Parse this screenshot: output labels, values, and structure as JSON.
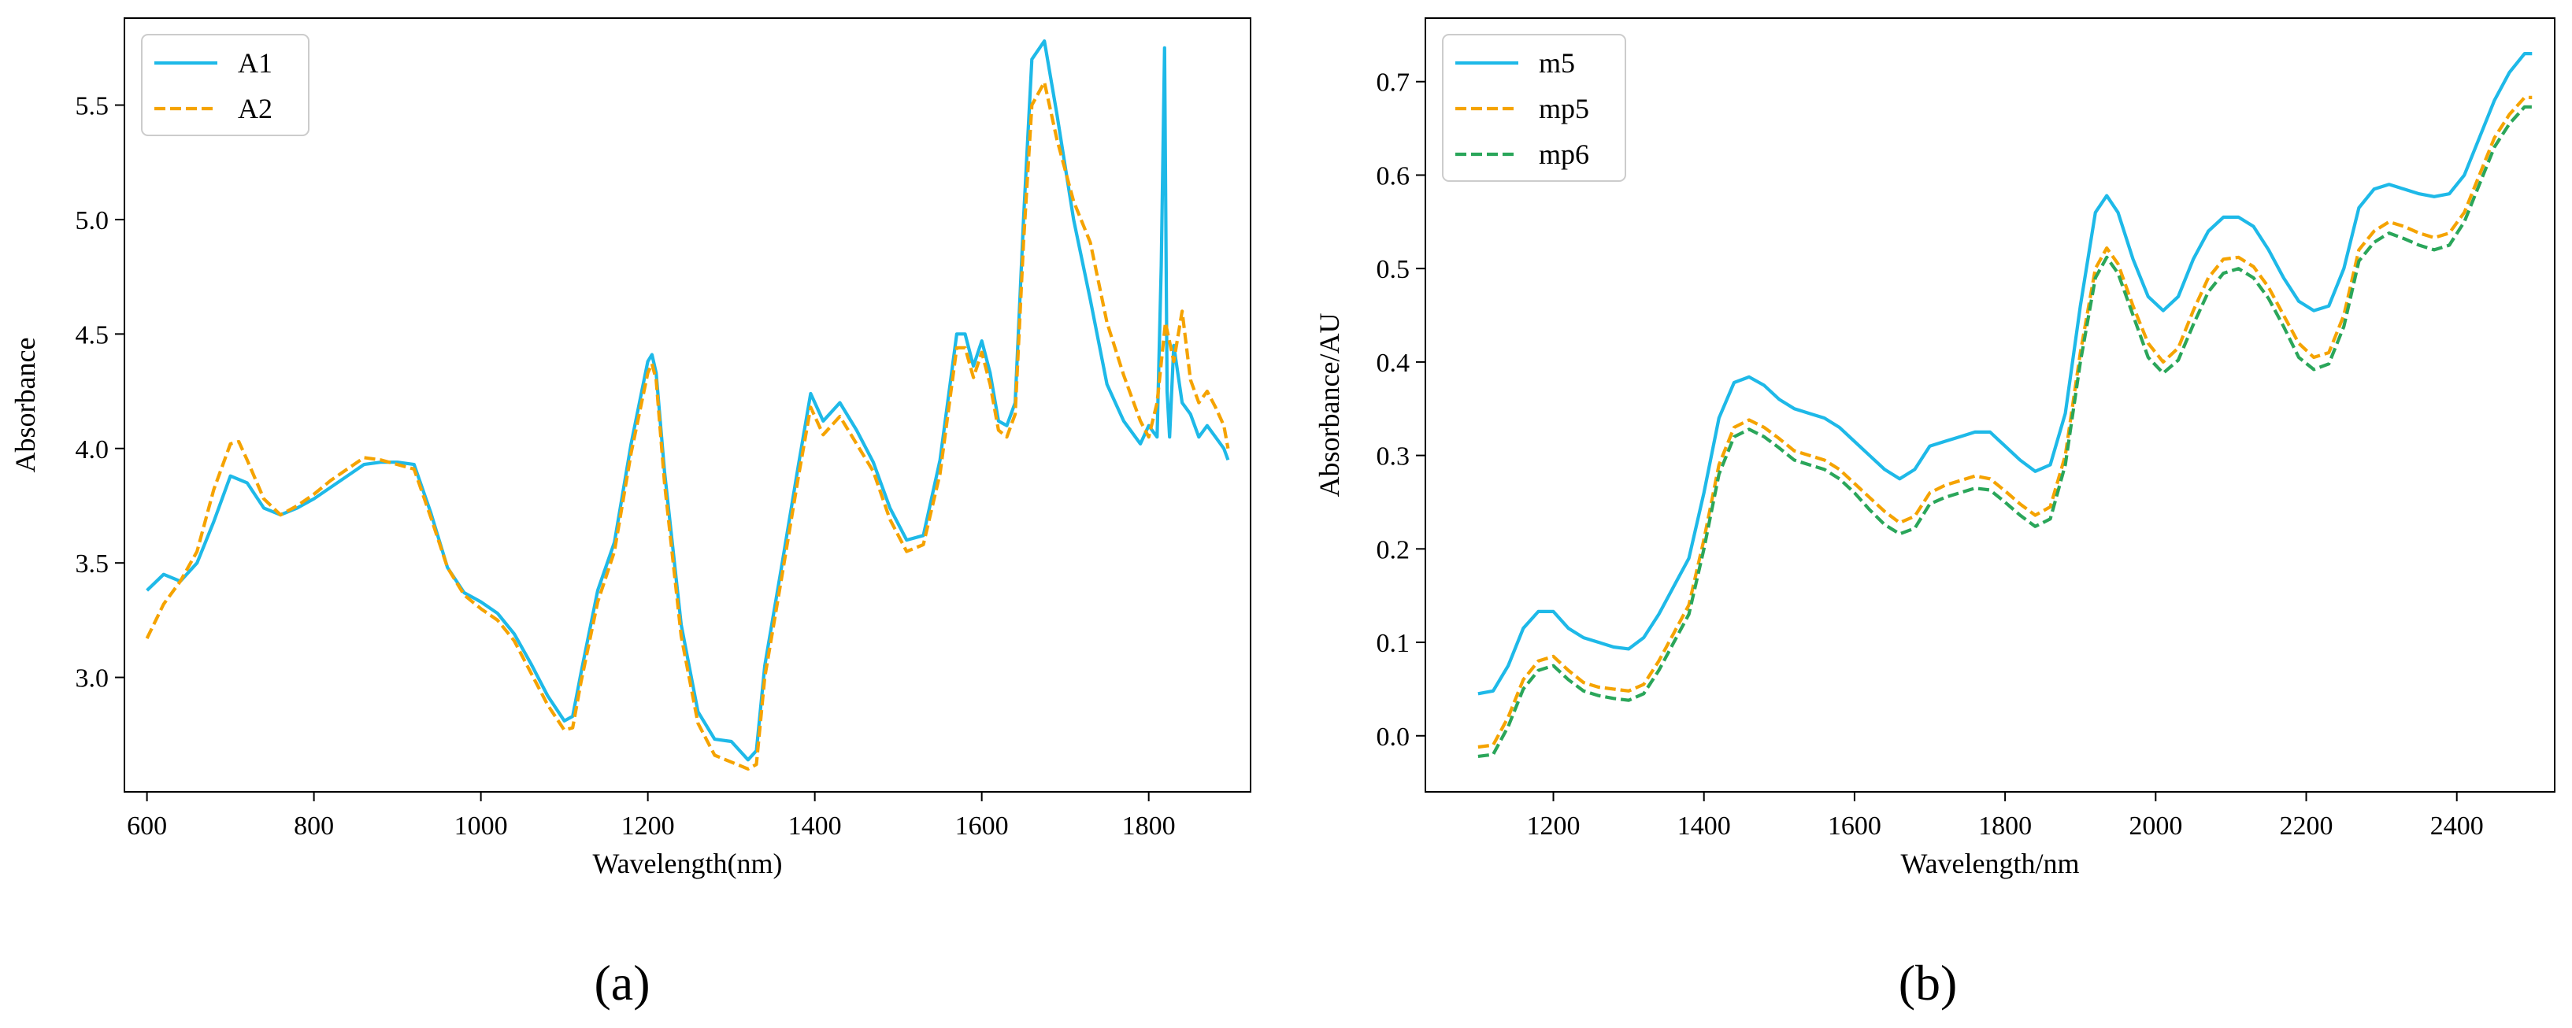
{
  "chart_data": [
    {
      "type": "line",
      "panel": "(a)",
      "xlabel": "Wavelength(nm)",
      "ylabel": "Absorbance",
      "xlim": [
        573,
        1922
      ],
      "ylim": [
        2.5,
        5.88
      ],
      "xticks": [
        600,
        800,
        1000,
        1200,
        1400,
        1600,
        1800
      ],
      "yticks": [
        3.0,
        3.5,
        4.0,
        4.5,
        5.0,
        5.5
      ],
      "ytick_labels": [
        "3.0",
        "3.5",
        "4.0",
        "4.5",
        "5.0",
        "5.5"
      ],
      "legend": "top-left",
      "grid": false,
      "series": [
        {
          "name": "A1",
          "color": "#1EB9E8",
          "dash": "solid",
          "x": [
            600,
            620,
            640,
            660,
            680,
            700,
            720,
            740,
            760,
            780,
            800,
            820,
            840,
            860,
            880,
            900,
            920,
            940,
            960,
            980,
            1000,
            1020,
            1040,
            1060,
            1080,
            1100,
            1110,
            1120,
            1140,
            1160,
            1180,
            1200,
            1205,
            1210,
            1220,
            1240,
            1260,
            1280,
            1300,
            1320,
            1330,
            1340,
            1360,
            1380,
            1395,
            1410,
            1430,
            1450,
            1470,
            1490,
            1510,
            1530,
            1550,
            1570,
            1580,
            1590,
            1600,
            1610,
            1620,
            1630,
            1640,
            1650,
            1660,
            1675,
            1690,
            1710,
            1730,
            1750,
            1770,
            1790,
            1800,
            1810,
            1815,
            1819,
            1822,
            1825,
            1830,
            1840,
            1850,
            1860,
            1870,
            1880,
            1890,
            1895
          ],
          "y": [
            3.38,
            3.45,
            3.42,
            3.5,
            3.68,
            3.88,
            3.85,
            3.74,
            3.71,
            3.74,
            3.78,
            3.83,
            3.88,
            3.93,
            3.94,
            3.94,
            3.93,
            3.72,
            3.48,
            3.37,
            3.33,
            3.28,
            3.19,
            3.06,
            2.92,
            2.81,
            2.83,
            3.02,
            3.38,
            3.59,
            4.02,
            4.38,
            4.41,
            4.33,
            3.9,
            3.23,
            2.85,
            2.73,
            2.72,
            2.64,
            2.68,
            3.05,
            3.48,
            3.92,
            4.24,
            4.12,
            4.2,
            4.08,
            3.94,
            3.74,
            3.6,
            3.62,
            3.95,
            4.5,
            4.5,
            4.36,
            4.47,
            4.33,
            4.12,
            4.1,
            4.2,
            5.0,
            5.7,
            5.78,
            5.46,
            5.0,
            4.65,
            4.28,
            4.12,
            4.02,
            4.1,
            4.05,
            4.8,
            5.75,
            4.25,
            4.05,
            4.45,
            4.2,
            4.15,
            4.05,
            4.1,
            4.05,
            4.0,
            3.95
          ]
        },
        {
          "name": "A2",
          "color": "#F5A300",
          "dash": "dashed",
          "x": [
            600,
            620,
            640,
            660,
            680,
            700,
            710,
            720,
            740,
            760,
            780,
            800,
            820,
            840,
            860,
            880,
            900,
            920,
            940,
            960,
            980,
            1000,
            1020,
            1040,
            1060,
            1080,
            1100,
            1110,
            1120,
            1140,
            1160,
            1180,
            1200,
            1205,
            1210,
            1220,
            1240,
            1260,
            1280,
            1300,
            1320,
            1330,
            1340,
            1360,
            1380,
            1395,
            1410,
            1430,
            1450,
            1470,
            1490,
            1510,
            1530,
            1550,
            1570,
            1580,
            1590,
            1600,
            1610,
            1620,
            1630,
            1640,
            1650,
            1660,
            1675,
            1690,
            1710,
            1730,
            1750,
            1770,
            1790,
            1800,
            1810,
            1820,
            1830,
            1840,
            1850,
            1860,
            1870,
            1880,
            1890,
            1895
          ],
          "y": [
            3.17,
            3.32,
            3.42,
            3.55,
            3.82,
            4.02,
            4.03,
            3.95,
            3.78,
            3.71,
            3.75,
            3.8,
            3.86,
            3.91,
            3.96,
            3.95,
            3.93,
            3.91,
            3.7,
            3.48,
            3.36,
            3.3,
            3.25,
            3.16,
            3.02,
            2.88,
            2.77,
            2.78,
            2.98,
            3.33,
            3.55,
            3.98,
            4.33,
            4.37,
            4.3,
            3.85,
            3.18,
            2.8,
            2.66,
            2.63,
            2.6,
            2.62,
            3.0,
            3.43,
            3.87,
            4.18,
            4.06,
            4.14,
            4.02,
            3.9,
            3.69,
            3.55,
            3.58,
            3.89,
            4.44,
            4.44,
            4.31,
            4.42,
            4.28,
            4.08,
            4.05,
            4.15,
            4.9,
            5.5,
            5.6,
            5.35,
            5.08,
            4.9,
            4.55,
            4.32,
            4.12,
            4.05,
            4.2,
            4.55,
            4.38,
            4.6,
            4.3,
            4.2,
            4.25,
            4.18,
            4.1,
            4.0
          ]
        }
      ]
    },
    {
      "type": "line",
      "panel": "(b)",
      "xlabel": "Wavelength/nm",
      "ylabel": "Absorbance/AU",
      "xlim": [
        1030,
        2530
      ],
      "ylim": [
        -0.06,
        0.768
      ],
      "xticks": [
        1200,
        1400,
        1600,
        1800,
        2000,
        2200,
        2400
      ],
      "yticks": [
        0.0,
        0.1,
        0.2,
        0.3,
        0.4,
        0.5,
        0.6,
        0.7
      ],
      "ytick_labels": [
        "0.0",
        "0.1",
        "0.2",
        "0.3",
        "0.4",
        "0.5",
        "0.6",
        "0.7"
      ],
      "legend": "top-left",
      "grid": false,
      "series": [
        {
          "name": "m5",
          "color": "#1EB9E8",
          "dash": "solid",
          "x": [
            1100,
            1120,
            1140,
            1160,
            1180,
            1200,
            1220,
            1240,
            1260,
            1280,
            1300,
            1320,
            1340,
            1360,
            1380,
            1400,
            1420,
            1440,
            1460,
            1480,
            1500,
            1520,
            1540,
            1560,
            1580,
            1600,
            1620,
            1640,
            1660,
            1680,
            1700,
            1720,
            1740,
            1760,
            1780,
            1800,
            1820,
            1840,
            1860,
            1880,
            1900,
            1920,
            1935,
            1950,
            1970,
            1990,
            2010,
            2030,
            2050,
            2070,
            2090,
            2110,
            2130,
            2150,
            2170,
            2190,
            2210,
            2230,
            2250,
            2270,
            2290,
            2310,
            2330,
            2350,
            2370,
            2390,
            2410,
            2430,
            2450,
            2470,
            2490,
            2500
          ],
          "y": [
            0.045,
            0.048,
            0.075,
            0.115,
            0.133,
            0.133,
            0.115,
            0.105,
            0.1,
            0.095,
            0.093,
            0.105,
            0.13,
            0.16,
            0.19,
            0.26,
            0.34,
            0.378,
            0.384,
            0.375,
            0.36,
            0.35,
            0.345,
            0.34,
            0.33,
            0.315,
            0.3,
            0.285,
            0.275,
            0.285,
            0.31,
            0.315,
            0.32,
            0.325,
            0.325,
            0.31,
            0.295,
            0.283,
            0.29,
            0.345,
            0.46,
            0.56,
            0.578,
            0.56,
            0.51,
            0.47,
            0.455,
            0.47,
            0.51,
            0.54,
            0.555,
            0.555,
            0.545,
            0.52,
            0.49,
            0.465,
            0.455,
            0.46,
            0.5,
            0.565,
            0.585,
            0.59,
            0.585,
            0.58,
            0.577,
            0.58,
            0.6,
            0.64,
            0.68,
            0.71,
            0.73,
            0.73
          ]
        },
        {
          "name": "mp5",
          "color": "#F5A300",
          "dash": "dashed",
          "x": [
            1100,
            1120,
            1140,
            1160,
            1180,
            1200,
            1220,
            1240,
            1260,
            1280,
            1300,
            1320,
            1340,
            1360,
            1380,
            1400,
            1420,
            1440,
            1460,
            1480,
            1500,
            1520,
            1540,
            1560,
            1580,
            1600,
            1620,
            1640,
            1660,
            1680,
            1700,
            1720,
            1740,
            1760,
            1780,
            1800,
            1820,
            1840,
            1860,
            1880,
            1900,
            1920,
            1935,
            1950,
            1970,
            1990,
            2010,
            2030,
            2050,
            2070,
            2090,
            2110,
            2130,
            2150,
            2170,
            2190,
            2210,
            2230,
            2250,
            2270,
            2290,
            2310,
            2330,
            2350,
            2370,
            2390,
            2410,
            2430,
            2450,
            2470,
            2490,
            2500
          ],
          "y": [
            -0.012,
            -0.01,
            0.02,
            0.06,
            0.08,
            0.085,
            0.07,
            0.057,
            0.052,
            0.05,
            0.048,
            0.055,
            0.08,
            0.11,
            0.14,
            0.21,
            0.29,
            0.33,
            0.338,
            0.33,
            0.318,
            0.305,
            0.3,
            0.295,
            0.285,
            0.27,
            0.255,
            0.24,
            0.228,
            0.235,
            0.26,
            0.268,
            0.273,
            0.278,
            0.275,
            0.262,
            0.248,
            0.236,
            0.245,
            0.3,
            0.41,
            0.5,
            0.522,
            0.505,
            0.46,
            0.42,
            0.4,
            0.415,
            0.455,
            0.49,
            0.51,
            0.512,
            0.502,
            0.48,
            0.45,
            0.42,
            0.405,
            0.41,
            0.45,
            0.52,
            0.54,
            0.55,
            0.545,
            0.538,
            0.533,
            0.538,
            0.56,
            0.6,
            0.64,
            0.665,
            0.683,
            0.683
          ]
        },
        {
          "name": "mp6",
          "color": "#2AA65A",
          "dash": "dashed",
          "x": [
            1100,
            1120,
            1140,
            1160,
            1180,
            1200,
            1220,
            1240,
            1260,
            1280,
            1300,
            1320,
            1340,
            1360,
            1380,
            1400,
            1420,
            1440,
            1460,
            1480,
            1500,
            1520,
            1540,
            1560,
            1580,
            1600,
            1620,
            1640,
            1660,
            1680,
            1700,
            1720,
            1740,
            1760,
            1780,
            1800,
            1820,
            1840,
            1860,
            1880,
            1900,
            1920,
            1935,
            1950,
            1970,
            1990,
            2010,
            2030,
            2050,
            2070,
            2090,
            2110,
            2130,
            2150,
            2170,
            2190,
            2210,
            2230,
            2250,
            2270,
            2290,
            2310,
            2330,
            2350,
            2370,
            2390,
            2410,
            2430,
            2450,
            2470,
            2490,
            2500
          ],
          "y": [
            -0.022,
            -0.02,
            0.01,
            0.05,
            0.07,
            0.075,
            0.06,
            0.048,
            0.043,
            0.04,
            0.038,
            0.045,
            0.07,
            0.1,
            0.13,
            0.2,
            0.28,
            0.32,
            0.328,
            0.32,
            0.308,
            0.295,
            0.29,
            0.285,
            0.275,
            0.26,
            0.242,
            0.226,
            0.216,
            0.222,
            0.248,
            0.255,
            0.26,
            0.265,
            0.263,
            0.25,
            0.236,
            0.224,
            0.232,
            0.29,
            0.4,
            0.49,
            0.512,
            0.495,
            0.45,
            0.405,
            0.388,
            0.402,
            0.44,
            0.475,
            0.495,
            0.5,
            0.49,
            0.468,
            0.438,
            0.405,
            0.392,
            0.398,
            0.438,
            0.508,
            0.528,
            0.538,
            0.532,
            0.525,
            0.52,
            0.525,
            0.55,
            0.59,
            0.63,
            0.655,
            0.673,
            0.673
          ]
        }
      ]
    }
  ]
}
